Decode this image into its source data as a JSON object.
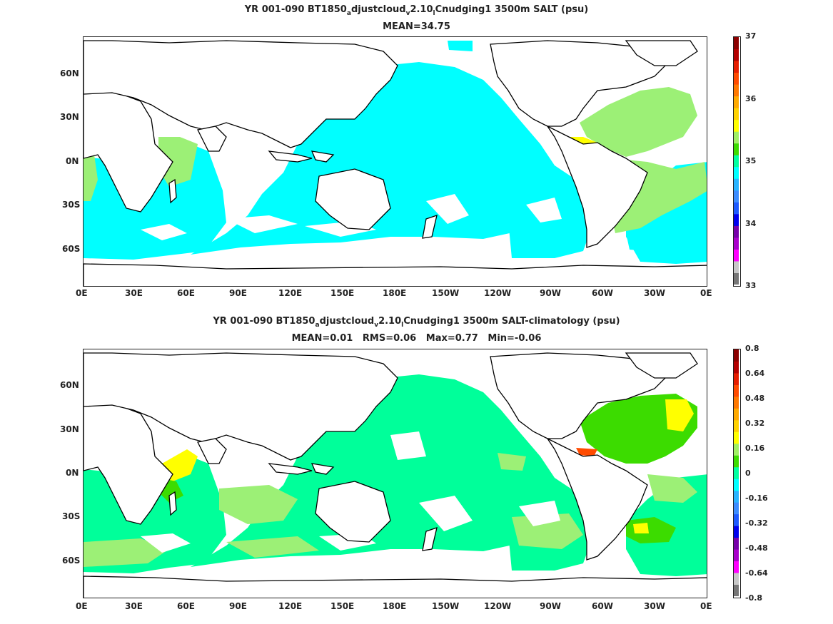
{
  "panels": [
    {
      "title_parts": [
        "YR 001-090 BT1850",
        "a",
        "djustcloud",
        "v",
        "2.10",
        "l",
        "Cnudging1 3500m SALT (psu)"
      ],
      "subtitle": "MEAN=34.75",
      "lat_labels": [
        "60N",
        "30N",
        "0N",
        "30S",
        "60S"
      ],
      "lon_labels": [
        "0E",
        "30E",
        "60E",
        "90E",
        "120E",
        "150E",
        "180E",
        "150W",
        "120W",
        "90W",
        "60W",
        "30W",
        "0E"
      ],
      "colorbar": {
        "labels": [
          "37",
          "36",
          "35",
          "34",
          "33"
        ],
        "colors": [
          "#777777",
          "#c8c8c8",
          "#ff00ff",
          "#aa00cc",
          "#7700aa",
          "#0000ee",
          "#1e5aff",
          "#3c8cff",
          "#28b4ff",
          "#00ffff",
          "#00ffa0",
          "#3cdc00",
          "#a0f064",
          "#ffff00",
          "#ffd200",
          "#ffaa00",
          "#ff7800",
          "#ff4b00",
          "#e61e00",
          "#b40000",
          "#8c0000"
        ]
      },
      "field_colors": {
        "ocean": "#00ffff",
        "north_atlantic": "#9cf076",
        "caribbean_high": "#ffff00"
      }
    },
    {
      "title_parts": [
        "YR 001-090 BT1850",
        "a",
        "djustcloud",
        "v",
        "2.10",
        "l",
        "Cnudging1 3500m SALT-climatology (psu)"
      ],
      "subtitle": "MEAN=0.01   RMS=0.06   Max=0.77   Min=-0.06",
      "lat_labels": [
        "60N",
        "30N",
        "0N",
        "30S",
        "60S"
      ],
      "lon_labels": [
        "0E",
        "30E",
        "60E",
        "90E",
        "120E",
        "150E",
        "180E",
        "150W",
        "120W",
        "90W",
        "60W",
        "30W",
        "0E"
      ],
      "colorbar": {
        "labels": [
          "0.8",
          "0.64",
          "0.48",
          "0.32",
          "0.16",
          "0",
          "-0.16",
          "-0.32",
          "-0.48",
          "-0.64",
          "-0.8"
        ],
        "colors": [
          "#777777",
          "#c8c8c8",
          "#ff00ff",
          "#aa00cc",
          "#7700aa",
          "#0000ee",
          "#1e5aff",
          "#3c8cff",
          "#28b4ff",
          "#00ffff",
          "#00ffa0",
          "#3cdc00",
          "#a0f064",
          "#ffff00",
          "#ffd200",
          "#ffaa00",
          "#ff7800",
          "#ff4b00",
          "#e61e00",
          "#b40000",
          "#8c0000"
        ]
      },
      "field_colors": {
        "ocean": "#00ff9a",
        "anomaly_light": "#9cf076",
        "anomaly_green": "#3cdc00",
        "anomaly_yellow": "#ffff00",
        "anomaly_red": "#ff4b00"
      }
    }
  ]
}
